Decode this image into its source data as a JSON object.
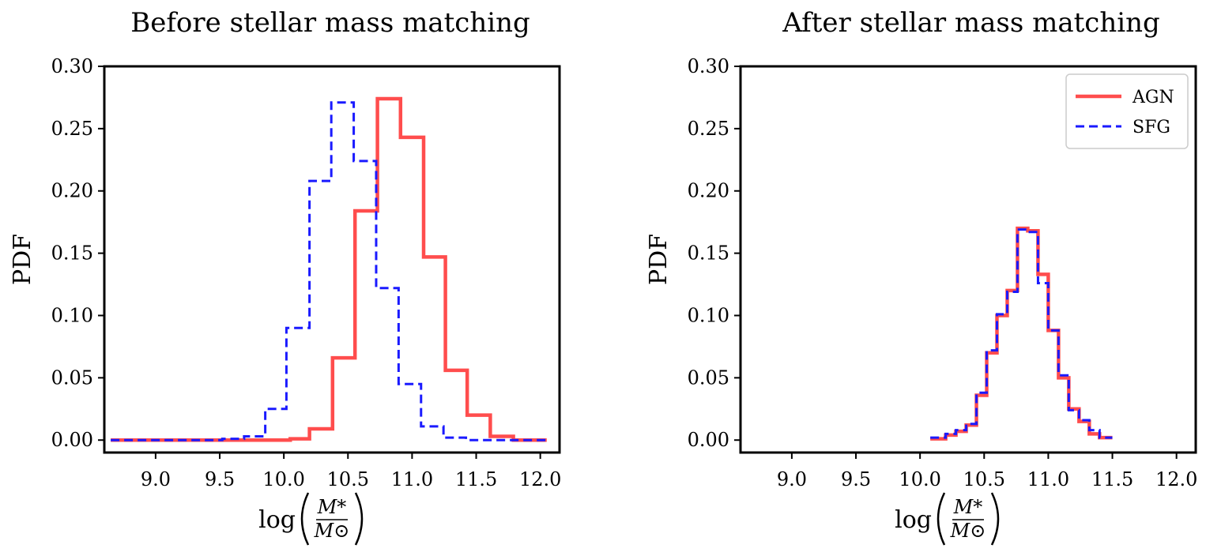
{
  "colors": {
    "agn": "#ff4d4d",
    "sfg": "#1a1aff",
    "axes": "#000000"
  },
  "chart_data": [
    {
      "type": "histogram-step",
      "title": "Before stellar mass matching",
      "ylabel": "PDF",
      "xlabel": {
        "prefix": "log",
        "numerator": "M*",
        "denominator": "M⊙"
      },
      "xlim": [
        8.6,
        12.15
      ],
      "ylim": [
        -0.01,
        0.3
      ],
      "xticks": [
        9.0,
        9.5,
        10.0,
        10.5,
        11.0,
        11.5,
        12.0
      ],
      "xtick_labels": [
        "9.0",
        "9.5",
        "10.0",
        "10.5",
        "11.0",
        "11.5",
        "12.0"
      ],
      "yticks": [
        0.0,
        0.05,
        0.1,
        0.15,
        0.2,
        0.25,
        0.3
      ],
      "ytick_labels": [
        "0.00",
        "0.05",
        "0.10",
        "0.15",
        "0.20",
        "0.25",
        "0.30"
      ],
      "legend": null,
      "series": [
        {
          "name": "AGN",
          "style": "solid",
          "bin_edges": [
            8.65,
            8.825,
            9.0,
            9.175,
            9.35,
            9.525,
            9.7,
            9.875,
            10.05,
            10.2,
            10.38,
            10.555,
            10.73,
            10.91,
            11.09,
            11.26,
            11.43,
            11.61,
            11.79,
            11.96,
            12.05
          ],
          "values": [
            0.0,
            0.0,
            0.0,
            0.0,
            0.0,
            0.0,
            0.0,
            0.0,
            0.001,
            0.009,
            0.066,
            0.184,
            0.274,
            0.243,
            0.147,
            0.056,
            0.02,
            0.003,
            0.0,
            0.0
          ]
        },
        {
          "name": "SFG",
          "style": "dashed",
          "bin_edges": [
            8.65,
            8.825,
            9.0,
            9.175,
            9.35,
            9.52,
            9.69,
            9.855,
            10.02,
            10.2,
            10.37,
            10.545,
            10.72,
            10.895,
            11.07,
            11.245,
            11.42,
            11.6,
            11.77,
            11.94,
            12.05
          ],
          "values": [
            0.0,
            0.0,
            0.0,
            0.0,
            0.0,
            0.001,
            0.003,
            0.025,
            0.09,
            0.208,
            0.271,
            0.224,
            0.122,
            0.045,
            0.011,
            0.002,
            0.0,
            0.0,
            0.0,
            0.0
          ]
        }
      ]
    },
    {
      "type": "histogram-step",
      "title": "After stellar mass matching",
      "ylabel": "PDF",
      "xlabel": {
        "prefix": "log",
        "numerator": "M*",
        "denominator": "M⊙"
      },
      "xlim": [
        8.6,
        12.15
      ],
      "ylim": [
        -0.01,
        0.3
      ],
      "xticks": [
        9.0,
        9.5,
        10.0,
        10.5,
        11.0,
        11.5,
        12.0
      ],
      "xtick_labels": [
        "9.0",
        "9.5",
        "10.0",
        "10.5",
        "11.0",
        "11.5",
        "12.0"
      ],
      "yticks": [
        0.0,
        0.05,
        0.1,
        0.15,
        0.2,
        0.25,
        0.3
      ],
      "ytick_labels": [
        "0.00",
        "0.05",
        "0.10",
        "0.15",
        "0.20",
        "0.25",
        "0.30"
      ],
      "legend": {
        "placement": "top-right",
        "entries": [
          "AGN",
          "SFG"
        ]
      },
      "series": [
        {
          "name": "AGN",
          "style": "solid",
          "bin_edges": [
            10.08,
            10.2,
            10.28,
            10.36,
            10.44,
            10.52,
            10.6,
            10.68,
            10.76,
            10.84,
            10.92,
            11.0,
            11.08,
            11.16,
            11.24,
            11.32,
            11.4,
            11.5
          ],
          "values": [
            0.001,
            0.004,
            0.007,
            0.012,
            0.036,
            0.07,
            0.1,
            0.12,
            0.17,
            0.168,
            0.133,
            0.088,
            0.05,
            0.025,
            0.015,
            0.005,
            0.002
          ]
        },
        {
          "name": "SFG",
          "style": "dashed",
          "bin_edges": [
            10.08,
            10.2,
            10.28,
            10.36,
            10.44,
            10.52,
            10.6,
            10.68,
            10.76,
            10.84,
            10.92,
            11.0,
            11.08,
            11.16,
            11.24,
            11.32,
            11.4,
            11.5
          ],
          "values": [
            0.002,
            0.005,
            0.008,
            0.013,
            0.038,
            0.072,
            0.101,
            0.119,
            0.169,
            0.167,
            0.126,
            0.088,
            0.052,
            0.024,
            0.016,
            0.008,
            0.002
          ]
        }
      ]
    }
  ]
}
